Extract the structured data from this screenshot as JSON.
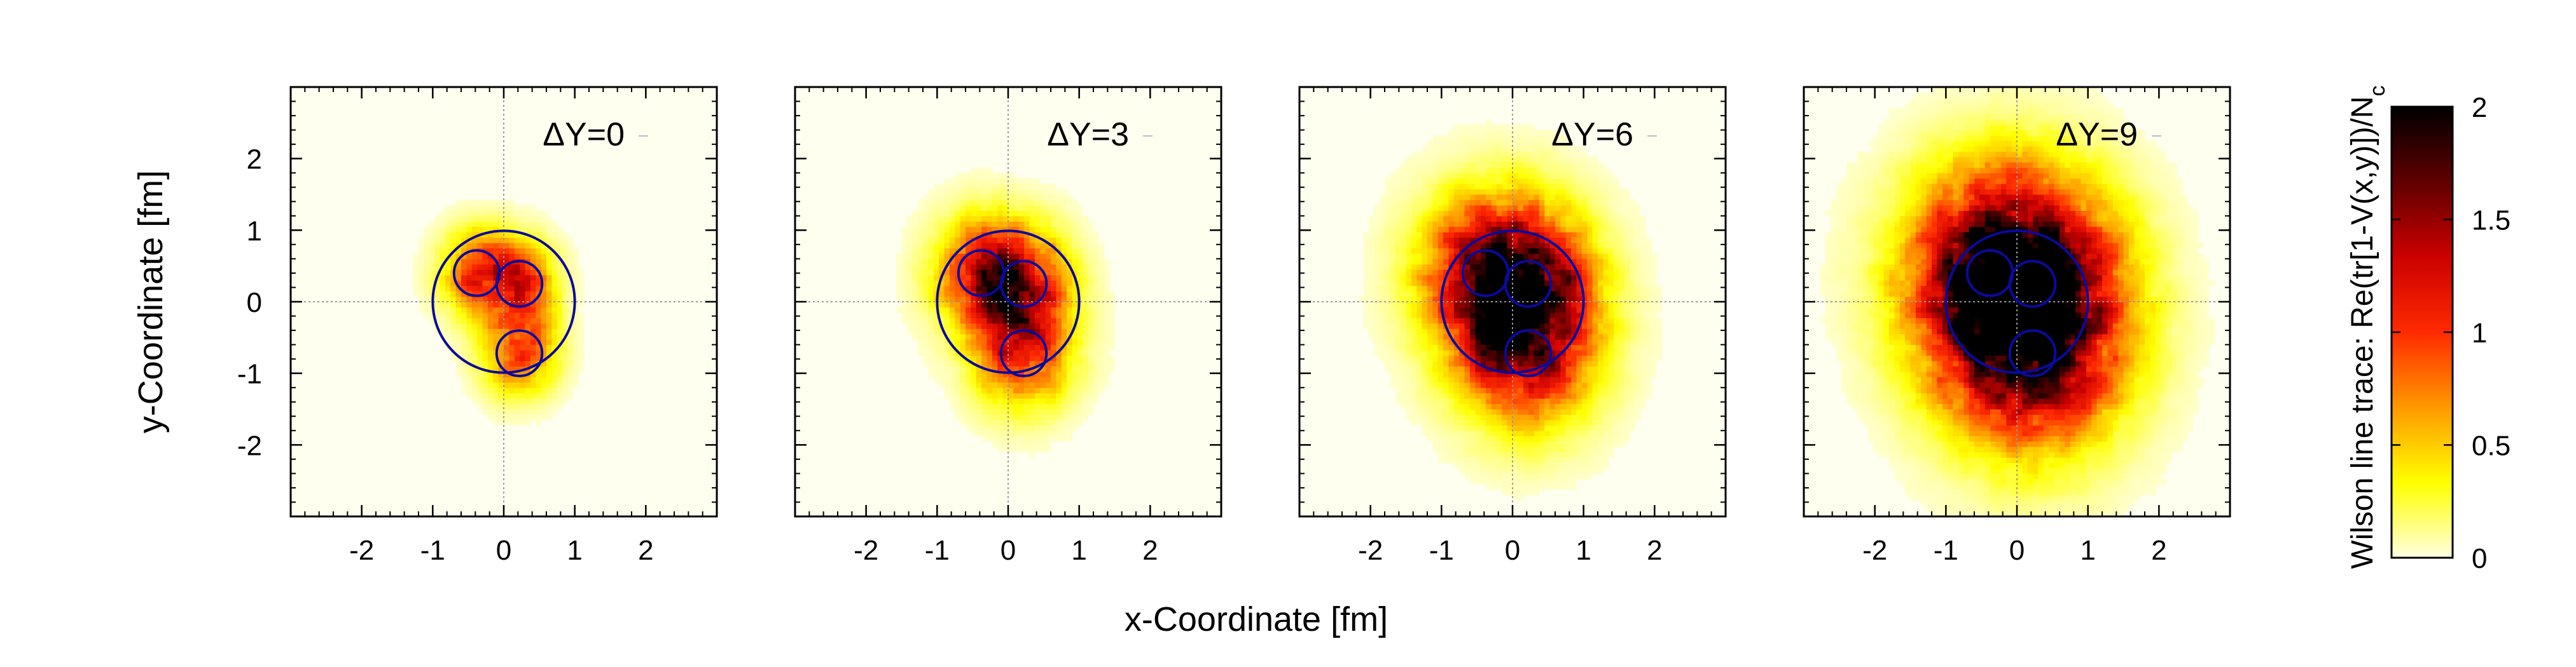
{
  "chart_data": {
    "type": "heatmap",
    "x_axis_label": "x-Coordinate [fm]",
    "y_axis_label": "y-Coordinate [fm]",
    "xlim": [
      -3,
      3
    ],
    "ylim": [
      -3,
      3
    ],
    "x_ticks": [
      -2,
      -1,
      0,
      1,
      2
    ],
    "y_ticks": [
      -2,
      -1,
      0,
      1,
      2
    ],
    "x_tick_labels": [
      "-2",
      "-1",
      "0",
      "1",
      "2"
    ],
    "y_tick_labels": [
      "-2",
      "-1",
      "0",
      "1",
      "2"
    ],
    "colorbar": {
      "label_parts": [
        "Wilson line trace: Re(tr[1-V(x,y)])/N",
        "c"
      ],
      "range": [
        0,
        2
      ],
      "ticks": [
        0,
        0.5,
        1,
        1.5,
        2
      ],
      "tick_labels": [
        "0",
        "0.5",
        "1",
        "1.5",
        "2"
      ],
      "colors": [
        "#ffffe0",
        "#ffff00",
        "#ff9900",
        "#ff2a00",
        "#cc0000",
        "#600000",
        "#000000"
      ]
    },
    "nucleon_circle": {
      "cx": 0,
      "cy": 0,
      "r": 1.0
    },
    "hotspot_radius": 0.32,
    "hotspots": [
      [
        -0.38,
        0.4
      ],
      [
        0.22,
        0.25
      ],
      [
        0.22,
        -0.72
      ]
    ],
    "panels": [
      {
        "title": "ΔY=0",
        "spread": 0.36,
        "peak": 1.35
      },
      {
        "title": "ΔY=3",
        "spread": 0.48,
        "peak": 1.45
      },
      {
        "title": "ΔY=6",
        "spread": 0.68,
        "peak": 1.55
      },
      {
        "title": "ΔY=9",
        "spread": 0.9,
        "peak": 1.6
      }
    ],
    "circle_color": "#0a0a9e"
  }
}
